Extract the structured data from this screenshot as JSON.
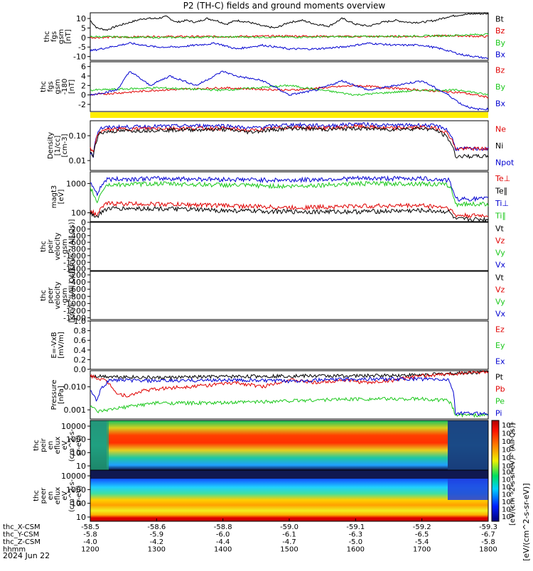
{
  "title": "P2 (TH-C) fields and ground moments overview",
  "date": "2024 Jun 22",
  "colors": {
    "black": "#000000",
    "red": "#e00000",
    "green": "#1cc81c",
    "blue": "#0000d0",
    "yellow": "#ffee00"
  },
  "chart_data": [
    {
      "type": "line",
      "panel": "fgs_gsm",
      "ylabel": [
        "thc",
        "fgs",
        "gsm",
        "[nT]"
      ],
      "yticks": [
        10,
        5,
        0,
        -5,
        -10
      ],
      "ylim": [
        -12,
        13
      ],
      "legend": [
        "Bt",
        "Bz",
        "By",
        "Bx"
      ],
      "series": [
        {
          "name": "Bt",
          "color": "black",
          "x": [
            1200,
            1210,
            1225,
            1240,
            1260,
            1280,
            1300,
            1315,
            1330,
            1345,
            1360,
            1375,
            1390,
            1405,
            1420,
            1440,
            1460,
            1480,
            1500,
            1520,
            1540,
            1560,
            1580,
            1600,
            1620,
            1640,
            1660,
            1680,
            1700,
            1720,
            1740,
            1760,
            1780,
            1800
          ],
          "values": [
            9,
            5,
            4,
            6,
            8,
            10,
            10,
            11,
            8,
            9,
            8,
            10,
            9,
            7,
            9,
            8,
            6,
            5,
            8,
            9,
            7,
            6,
            10,
            7,
            6,
            8,
            9,
            8,
            8,
            9,
            11,
            12,
            12.5,
            12.5
          ]
        },
        {
          "name": "Bz",
          "color": "red",
          "x": [
            1200,
            1300,
            1400,
            1500,
            1600,
            1700,
            1740,
            1800
          ],
          "values": [
            0,
            0.5,
            0.5,
            0.8,
            0.5,
            0.6,
            1,
            0.5
          ]
        },
        {
          "name": "By",
          "color": "green",
          "x": [
            1200,
            1300,
            1400,
            1500,
            1600,
            1700,
            1740,
            1800
          ],
          "values": [
            0.5,
            0,
            0.3,
            0.2,
            0.5,
            0.8,
            1,
            1.8
          ]
        },
        {
          "name": "Bx",
          "color": "blue",
          "x": [
            1200,
            1230,
            1260,
            1300,
            1330,
            1360,
            1390,
            1420,
            1460,
            1500,
            1540,
            1580,
            1620,
            1660,
            1700,
            1730,
            1760,
            1780,
            1800
          ],
          "values": [
            -7,
            -5,
            -3,
            -5,
            -5,
            -4,
            -3,
            -6,
            -4,
            -6,
            -6,
            -5,
            -3,
            -4,
            -4,
            -6,
            -9,
            -10,
            -11
          ]
        }
      ]
    },
    {
      "type": "line",
      "panel": "fgs_gse",
      "ylabel": [
        "thc",
        "fgs",
        "gsm",
        "-180",
        "[nT]"
      ],
      "yticks": [
        6,
        4,
        2,
        0,
        -2
      ],
      "ylim": [
        -3.5,
        7
      ],
      "legend": [
        "Bz",
        "By",
        "Bx"
      ],
      "series": [
        {
          "name": "Bz",
          "color": "red",
          "x": [
            1200,
            1300,
            1400,
            1500,
            1600,
            1700,
            1760,
            1800
          ],
          "values": [
            0,
            1,
            1.5,
            1,
            2,
            1,
            0.5,
            -0.5
          ]
        },
        {
          "name": "By",
          "color": "green",
          "x": [
            1200,
            1300,
            1400,
            1500,
            1600,
            1700,
            1760,
            1800
          ],
          "values": [
            1,
            1.5,
            1,
            2,
            0,
            1,
            1,
            0
          ]
        },
        {
          "name": "Bx",
          "color": "blue",
          "x": [
            1200,
            1240,
            1260,
            1290,
            1320,
            1360,
            1400,
            1420,
            1460,
            1500,
            1540,
            1580,
            1620,
            1660,
            1700,
            1740,
            1760,
            1780,
            1800
          ],
          "values": [
            0,
            1,
            5,
            2,
            4,
            2,
            5,
            4,
            3,
            0,
            1,
            3,
            1,
            2,
            3,
            0,
            -2,
            -3,
            -3
          ]
        }
      ]
    },
    {
      "type": "line",
      "panel": "density",
      "log": true,
      "ylabel": [
        "Density",
        "[1/cc]",
        "[cm-3]"
      ],
      "yticks": [
        "0.10",
        "0.01"
      ],
      "ylim": [
        0.004,
        0.4
      ],
      "legend": [
        "Ne",
        "Ni",
        "Npot"
      ],
      "series": [
        {
          "name": "Npot",
          "color": "blue",
          "x": [
            1200,
            1205,
            1215,
            1230,
            1300,
            1400,
            1440,
            1500,
            1560,
            1600,
            1650,
            1700,
            1720,
            1735,
            1750,
            1800
          ],
          "values": [
            0.02,
            0.015,
            0.2,
            0.22,
            0.24,
            0.26,
            0.2,
            0.28,
            0.25,
            0.3,
            0.26,
            0.27,
            0.25,
            0.2,
            0.03,
            0.03
          ]
        },
        {
          "name": "Ne",
          "color": "red",
          "x": [
            1200,
            1205,
            1215,
            1230,
            1300,
            1400,
            1440,
            1500,
            1560,
            1600,
            1650,
            1700,
            1720,
            1735,
            1750,
            1800
          ],
          "values": [
            0.03,
            0.02,
            0.15,
            0.18,
            0.2,
            0.2,
            0.16,
            0.22,
            0.2,
            0.24,
            0.2,
            0.22,
            0.2,
            0.15,
            0.03,
            0.03
          ]
        },
        {
          "name": "Ni",
          "color": "black",
          "x": [
            1200,
            1205,
            1215,
            1230,
            1300,
            1400,
            1440,
            1500,
            1560,
            1600,
            1650,
            1700,
            1720,
            1735,
            1750,
            1800
          ],
          "values": [
            0.02,
            0.015,
            0.13,
            0.15,
            0.17,
            0.18,
            0.14,
            0.2,
            0.18,
            0.2,
            0.18,
            0.2,
            0.17,
            0.1,
            0.015,
            0.015
          ]
        }
      ]
    },
    {
      "type": "line",
      "panel": "temperature",
      "log": true,
      "ylabel": [
        "magt3",
        "[eV]"
      ],
      "yticks": [
        "1000",
        "100"
      ],
      "ylim": [
        50,
        2500
      ],
      "legend": [
        "Te⊥",
        "Te∥",
        "Ti⊥",
        "Ti∥"
      ],
      "series": [
        {
          "name": "Ti⊥",
          "color": "blue",
          "x": [
            1200,
            1210,
            1225,
            1300,
            1400,
            1500,
            1600,
            1700,
            1740,
            1750,
            1800
          ],
          "values": [
            1100,
            400,
            1400,
            1500,
            1400,
            1300,
            1500,
            1500,
            1300,
            300,
            300
          ]
        },
        {
          "name": "Ti∥",
          "color": "green",
          "x": [
            1200,
            1210,
            1225,
            1300,
            1400,
            1500,
            1600,
            1700,
            1740,
            1750,
            1800
          ],
          "values": [
            700,
            200,
            900,
            1000,
            900,
            800,
            1000,
            1000,
            900,
            200,
            200
          ]
        },
        {
          "name": "Te⊥",
          "color": "red",
          "x": [
            1200,
            1210,
            1225,
            1300,
            1400,
            1500,
            1600,
            1700,
            1740,
            1750,
            1800
          ],
          "values": [
            120,
            80,
            210,
            200,
            180,
            150,
            170,
            180,
            150,
            80,
            80
          ]
        },
        {
          "name": "Te∥",
          "color": "black",
          "x": [
            1200,
            1210,
            1225,
            1300,
            1400,
            1500,
            1600,
            1700,
            1740,
            1750,
            1800
          ],
          "values": [
            100,
            70,
            140,
            140,
            120,
            110,
            110,
            120,
            110,
            60,
            60
          ]
        }
      ]
    },
    {
      "type": "line",
      "panel": "peir_velocity",
      "ylabel": [
        "thc",
        "peir",
        "velocity",
        "gsm",
        "[km/s^(All Qs)]"
      ],
      "yticks": [
        0,
        -200,
        -400,
        -600,
        -800,
        -1000,
        -1200,
        -1400
      ],
      "ylim": [
        -1450,
        0
      ],
      "legend": [
        "Vt",
        "Vz",
        "Vy",
        "Vx"
      ],
      "series": []
    },
    {
      "type": "line",
      "panel": "peer_velocity",
      "ylabel": [
        "thc",
        "peer",
        "velocity",
        "gsm",
        "[km/s^(All Qs)]"
      ],
      "yticks": [
        -200,
        -400,
        -600,
        -800,
        -1000,
        -1200,
        -1400
      ],
      "ylim": [
        -1450,
        -100
      ],
      "legend": [
        "Vt",
        "Vz",
        "Vy",
        "Vx"
      ],
      "series": []
    },
    {
      "type": "line",
      "panel": "efield",
      "ylabel": [
        "E=-VxB",
        "[mV/m]"
      ],
      "yticks": [
        "1.0",
        "0.8",
        "0.6",
        "0.4",
        "0.2",
        "0.0"
      ],
      "ylim": [
        0,
        1
      ],
      "legend": [
        "Ez",
        "Ey",
        "Ex"
      ],
      "series": []
    },
    {
      "type": "line",
      "panel": "pressure",
      "log": true,
      "ylabel": [
        "Pressure",
        "[nPa]"
      ],
      "yticks": [
        "0.010",
        "0.001"
      ],
      "ylim": [
        0.0004,
        0.05
      ],
      "legend": [
        "Pt",
        "Pb",
        "Pe",
        "Pi"
      ],
      "series": [
        {
          "name": "Pt",
          "color": "black",
          "x": [
            1200,
            1300,
            1400,
            1500,
            1600,
            1700,
            1760,
            1800
          ],
          "values": [
            0.03,
            0.025,
            0.028,
            0.03,
            0.03,
            0.033,
            0.04,
            0.045
          ]
        },
        {
          "name": "Pb",
          "color": "red",
          "x": [
            1200,
            1220,
            1240,
            1260,
            1280,
            1300,
            1340,
            1380,
            1420,
            1460,
            1500,
            1540,
            1580,
            1620,
            1660,
            1700,
            1740,
            1760,
            1800
          ],
          "values": [
            0.03,
            0.02,
            0.005,
            0.004,
            0.007,
            0.008,
            0.01,
            0.012,
            0.015,
            0.01,
            0.02,
            0.015,
            0.02,
            0.015,
            0.02,
            0.03,
            0.035,
            0.04,
            0.045
          ]
        },
        {
          "name": "Pe",
          "color": "green",
          "x": [
            1200,
            1210,
            1230,
            1300,
            1400,
            1500,
            1600,
            1700,
            1740,
            1750,
            1800
          ],
          "values": [
            0.0015,
            0.0008,
            0.001,
            0.002,
            0.002,
            0.0025,
            0.003,
            0.003,
            0.0025,
            0.0006,
            0.0006
          ]
        },
        {
          "name": "Pi",
          "color": "blue",
          "x": [
            1200,
            1210,
            1230,
            1300,
            1400,
            1500,
            1600,
            1700,
            1740,
            1750,
            1800
          ],
          "values": [
            0.007,
            0.002,
            0.02,
            0.018,
            0.02,
            0.018,
            0.022,
            0.022,
            0.02,
            0.0007,
            0.0007
          ]
        }
      ]
    },
    {
      "type": "heatmap",
      "panel": "peir_spectrogram",
      "ylabel": [
        "thc",
        "peir",
        "en",
        "eflux",
        "eV",
        "(cm^2-s-",
        "sr-eV)"
      ],
      "yticks": [
        "10000",
        "1000",
        "100",
        "10"
      ]
    },
    {
      "type": "heatmap",
      "panel": "peer_spectrogram",
      "ylabel": [
        "thc",
        "peer",
        "en",
        "eflux",
        "eV",
        "(cm^2-s-",
        "sr-eV)"
      ],
      "yticks": [
        "10000",
        "1000",
        "100",
        "10"
      ]
    }
  ],
  "colorbar": {
    "top_labels": [
      "10⁸",
      "10⁷",
      "10⁶",
      "10⁵",
      "10⁴",
      "10³"
    ],
    "bottom_labels": [
      "10⁸",
      "10⁷",
      "10⁶",
      "10⁵",
      "10⁴",
      "10³",
      "10²"
    ],
    "axis_label": "[eV/(cm^2-s-sr-eV)]",
    "axis_label_overlap": "[eV/(cm^2-s-sr-eV)^(All Qs)]"
  },
  "xaxis": {
    "rows": [
      {
        "label": "thc_X-CSM",
        "values": [
          "-58.5",
          "-58.6",
          "-58.8",
          "-59.0",
          "-59.1",
          "-59.2",
          "-59.3"
        ]
      },
      {
        "label": "thc_Y-CSM",
        "values": [
          "-5.8",
          "-5.9",
          "-6.0",
          "-6.1",
          "-6.3",
          "-6.5",
          "-6.7"
        ]
      },
      {
        "label": "thc_Z-CSM",
        "values": [
          "-4.0",
          "-4.2",
          "-4.4",
          "-4.7",
          "-5.0",
          "-5.4",
          "-5.8"
        ]
      },
      {
        "label": "hhmm",
        "values": [
          "1200",
          "1300",
          "1400",
          "1500",
          "1600",
          "1700",
          "1800"
        ]
      }
    ]
  }
}
